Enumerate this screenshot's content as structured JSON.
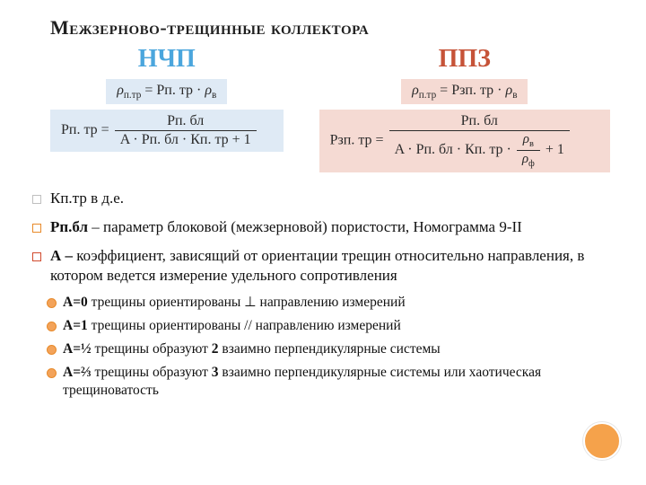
{
  "title": "Межзерново-трещинные коллектора",
  "columns": {
    "left": {
      "heading": "НЧП",
      "heading_color": "#4ba6dd",
      "formula1_bg": "#dfeaf5",
      "formula2_bg": "#dfeaf5",
      "f1_lhs": "ρ",
      "f1_lhs_sub": "п.тр",
      "f1_rhs_a": "Рп. тр",
      "f1_rhs_b": "ρ",
      "f1_rhs_b_sub": "в",
      "f2_lhs": "Рп. тр",
      "f2_num": "Рп. бл",
      "f2_den": "A · Рп. бл · Кп. тр + 1"
    },
    "right": {
      "heading": "ППЗ",
      "heading_color": "#c65338",
      "formula1_bg": "#f5dad3",
      "formula2_bg": "#f5dad3",
      "f1_lhs": "ρ",
      "f1_lhs_sub": "п.тр",
      "f1_rhs_a": "Рзп. тр",
      "f1_rhs_b": "ρ",
      "f1_rhs_b_sub": "в",
      "f2_lhs": "Рзп. тр",
      "f2_num": "Рп. бл",
      "f2_den_pre": "A · Рп. бл · Кп. тр · ",
      "f2_den_frac_num": "ρ",
      "f2_den_frac_num_sub": "в",
      "f2_den_frac_den": "ρ",
      "f2_den_frac_den_sub": "ф",
      "f2_den_post": " + 1"
    }
  },
  "bullets": {
    "item1": "Кп.тр в д.е.",
    "item2_bold": "Рп.бл",
    "item2_rest": " – параметр блоковой (межзерновой) пористости, Номограмма 9-II",
    "item3_bold": "А –",
    "item3_rest": " коэффициент, зависящий от ориентации трещин относительно направления, в котором ведется измерение удельного сопротивления"
  },
  "sub": {
    "s1_b": "А=0",
    "s1_t": " трещины ориентированы ⊥ направлению измерений",
    "s2_b": "А=1",
    "s2_t": " трещины ориентированы // направлению измерений",
    "s3_b": "А=½",
    "s3_t_a": " трещины образуют ",
    "s3_t_n": "2",
    "s3_t_b": " взаимно перпендикулярные системы",
    "s4_b": "А=⅔",
    "s4_t_a": " трещины образуют ",
    "s4_t_n": "3",
    "s4_t_b": " взаимно перпендикулярные системы или хаотическая трещиноватость"
  },
  "colors": {
    "deco_fill": "#f5a24b"
  }
}
